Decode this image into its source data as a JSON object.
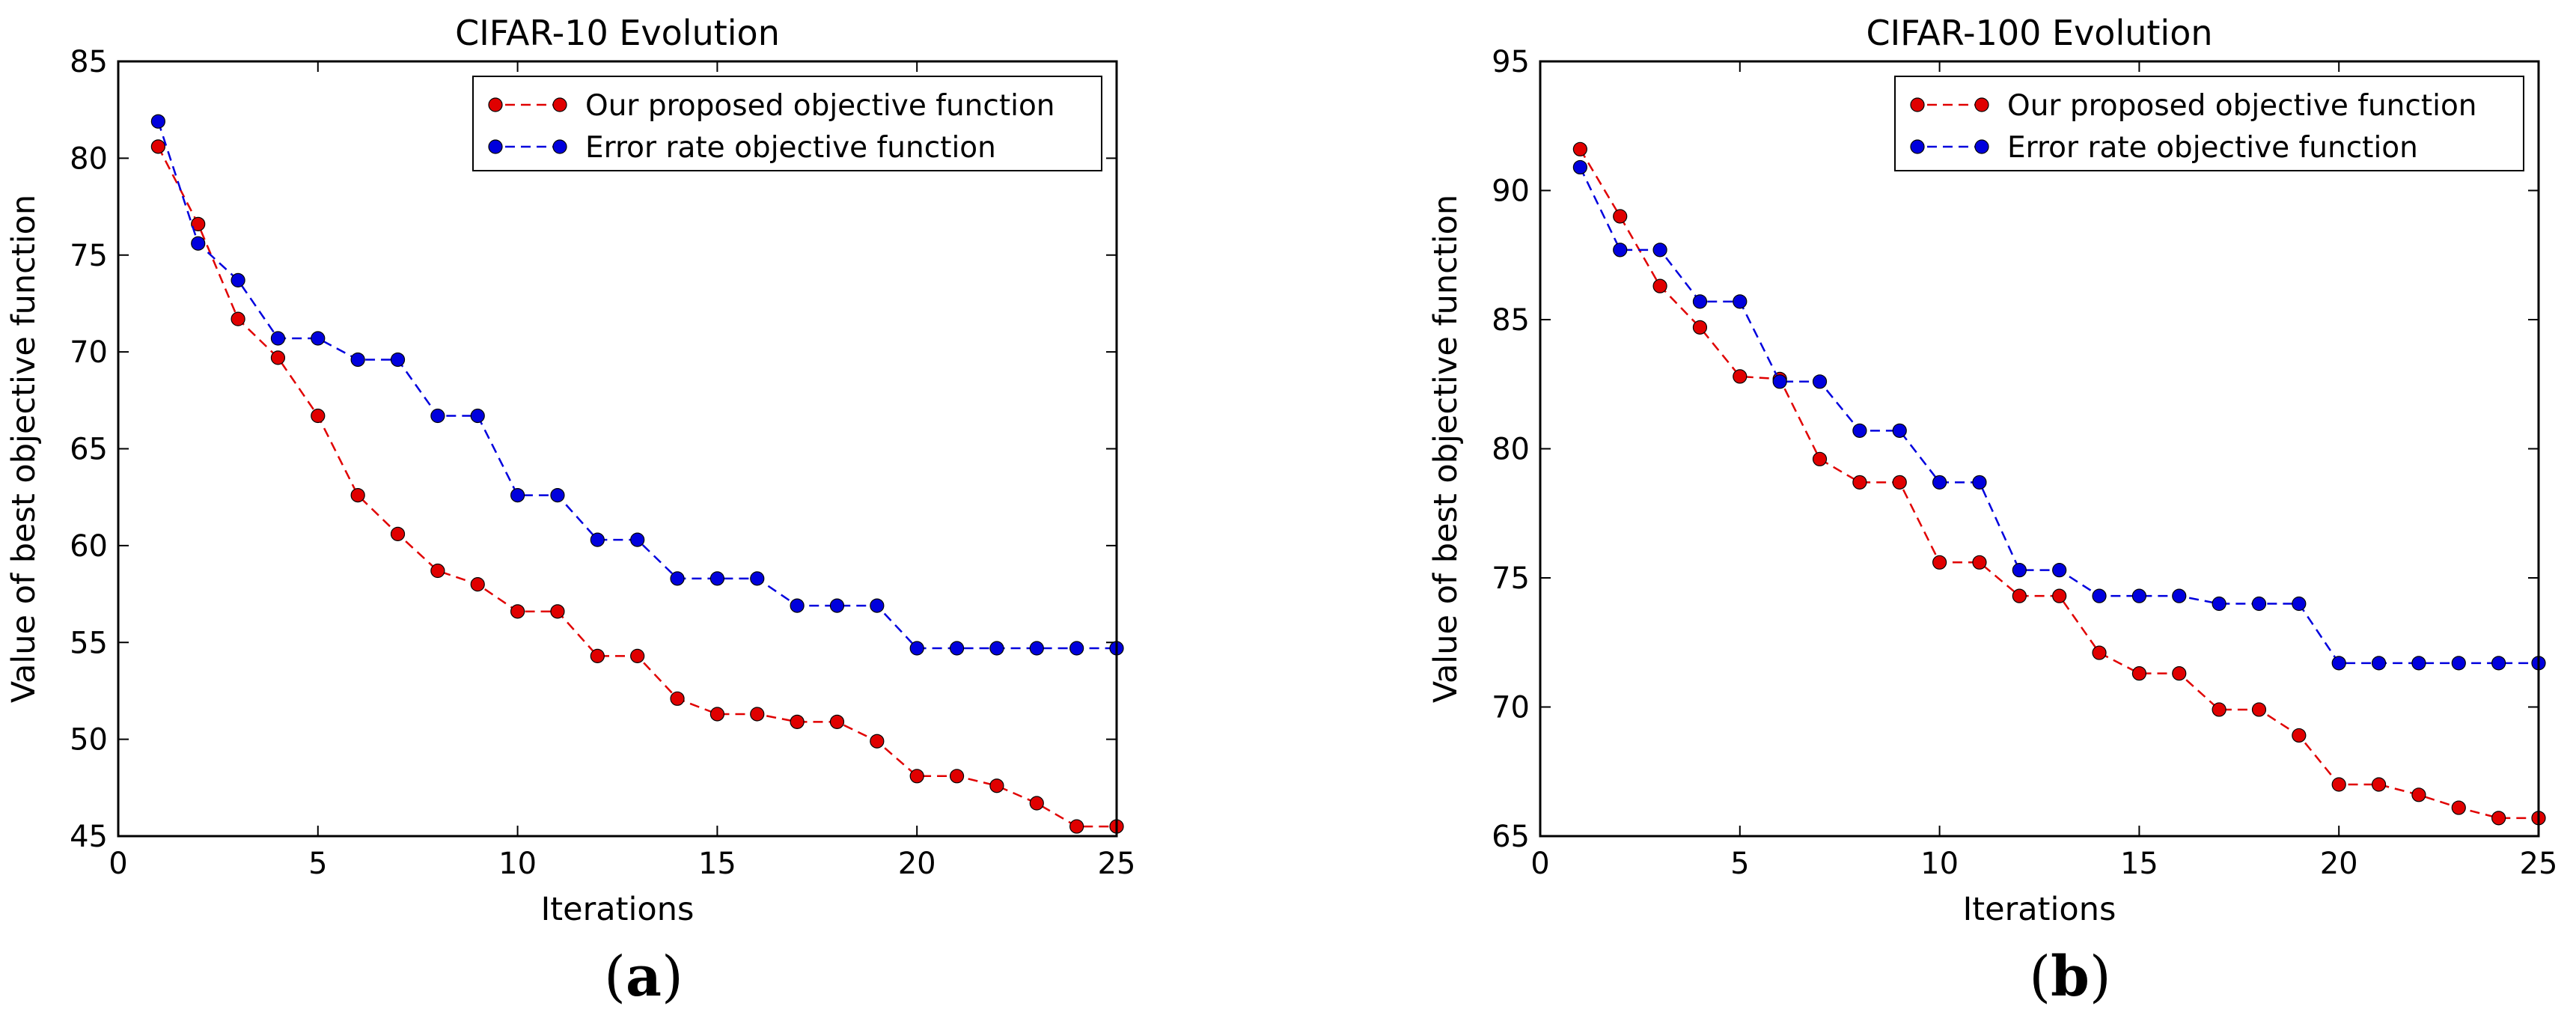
{
  "figure": {
    "panel_labels": [
      {
        "open": "(",
        "letter": "a",
        "close": ")"
      },
      {
        "open": "(",
        "letter": "b",
        "close": ")"
      }
    ]
  },
  "colors": {
    "proposed": "#e00000",
    "error": "#0000dd",
    "axis": "#000000"
  },
  "chart_data": [
    {
      "type": "line",
      "title": "CIFAR-10 Evolution",
      "xlabel": "Iterations",
      "ylabel": "Value of best objective function",
      "xlim": [
        0,
        25
      ],
      "ylim": [
        45,
        85
      ],
      "xticks": [
        0,
        5,
        10,
        15,
        20,
        25
      ],
      "yticks": [
        45,
        50,
        55,
        60,
        65,
        70,
        75,
        80,
        85
      ],
      "grid": false,
      "legend_position": "top-right",
      "x": [
        1,
        2,
        3,
        4,
        5,
        6,
        7,
        8,
        9,
        10,
        11,
        12,
        13,
        14,
        15,
        16,
        17,
        18,
        19,
        20,
        21,
        22,
        23,
        24,
        25
      ],
      "series": [
        {
          "name": "Our proposed objective function",
          "color_key": "proposed",
          "values": [
            80.6,
            76.6,
            71.7,
            69.7,
            66.7,
            62.6,
            60.6,
            58.7,
            58.0,
            56.6,
            56.6,
            54.3,
            54.3,
            52.1,
            51.3,
            51.3,
            50.9,
            50.9,
            49.9,
            48.1,
            48.1,
            47.6,
            46.7,
            45.5,
            45.5
          ]
        },
        {
          "name": "Error rate objective function",
          "color_key": "error",
          "values": [
            81.9,
            75.6,
            73.7,
            70.7,
            70.7,
            69.6,
            69.6,
            66.7,
            66.7,
            62.6,
            62.6,
            60.3,
            60.3,
            58.3,
            58.3,
            58.3,
            56.9,
            56.9,
            56.9,
            54.7,
            54.7,
            54.7,
            54.7,
            54.7,
            54.7
          ]
        }
      ]
    },
    {
      "type": "line",
      "title": "CIFAR-100 Evolution",
      "xlabel": "Iterations",
      "ylabel": "Value of best objective function",
      "xlim": [
        0,
        25
      ],
      "ylim": [
        65,
        95
      ],
      "xticks": [
        0,
        5,
        10,
        15,
        20,
        25
      ],
      "yticks": [
        65,
        70,
        75,
        80,
        85,
        90,
        95
      ],
      "grid": false,
      "legend_position": "top-right",
      "x": [
        1,
        2,
        3,
        4,
        5,
        6,
        7,
        8,
        9,
        10,
        11,
        12,
        13,
        14,
        15,
        16,
        17,
        18,
        19,
        20,
        21,
        22,
        23,
        24,
        25
      ],
      "series": [
        {
          "name": "Our proposed objective function",
          "color_key": "proposed",
          "values": [
            91.6,
            89.0,
            86.3,
            84.7,
            82.8,
            82.7,
            79.6,
            78.7,
            78.7,
            75.6,
            75.6,
            74.3,
            74.3,
            72.1,
            71.3,
            71.3,
            69.9,
            69.9,
            68.9,
            67.0,
            67.0,
            66.6,
            66.1,
            65.7,
            65.7
          ]
        },
        {
          "name": "Error rate objective function",
          "color_key": "error",
          "values": [
            90.9,
            87.7,
            87.7,
            85.7,
            85.7,
            82.6,
            82.6,
            80.7,
            80.7,
            78.7,
            78.7,
            75.3,
            75.3,
            74.3,
            74.3,
            74.3,
            74.0,
            74.0,
            74.0,
            71.7,
            71.7,
            71.7,
            71.7,
            71.7,
            71.7
          ]
        }
      ]
    }
  ]
}
